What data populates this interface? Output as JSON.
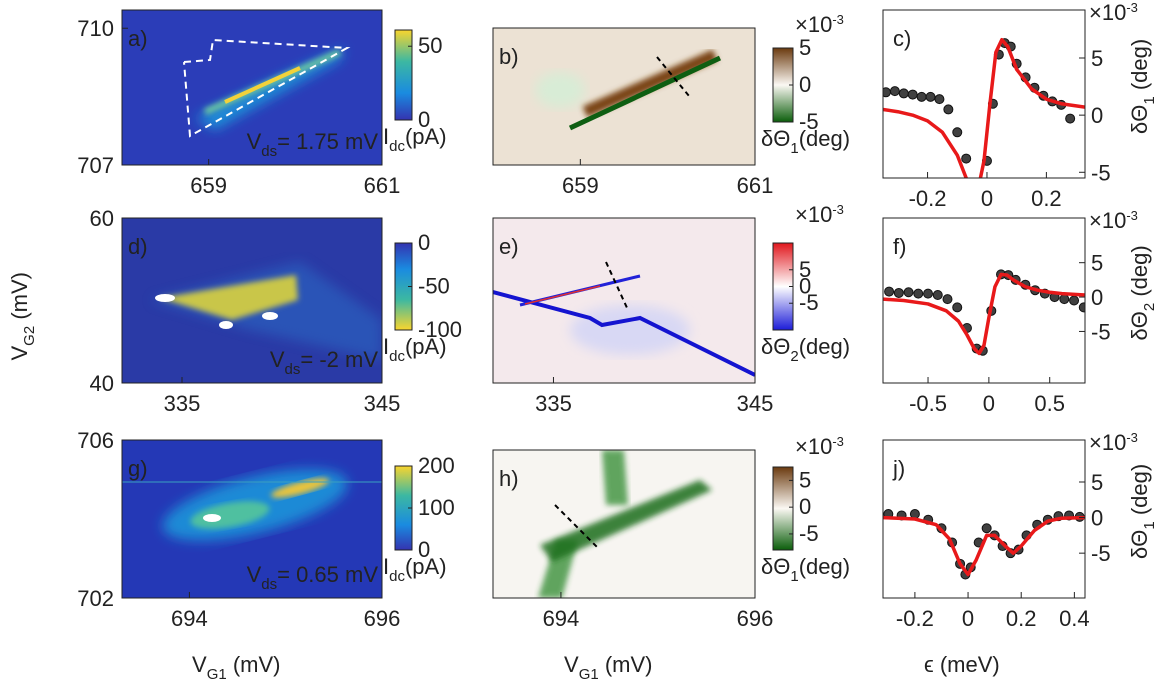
{
  "chart_data": [
    {
      "type": "heatmap",
      "panel_label": "a)",
      "colormap": "parula",
      "xlim": [
        658,
        661
      ],
      "xticks": [
        659,
        661
      ],
      "ylim": [
        707,
        710.4
      ],
      "yticks": [
        707,
        710
      ],
      "annotation": {
        "text": "V",
        "sub": "ds",
        "after": "= 1.75 mV"
      },
      "colorbar": {
        "lim": [
          0,
          61
        ],
        "ticks": [
          0,
          50
        ],
        "label": {
          "text": "I",
          "sub": "dc",
          "after": "(pA)"
        }
      }
    },
    {
      "type": "heatmap",
      "panel_label": "b)",
      "colormap": "brown_green",
      "xlim": [
        658,
        661
      ],
      "xticks": [
        659,
        661
      ],
      "colorbar": {
        "lim": [
          -5,
          5
        ],
        "ticks": [
          -5,
          0,
          5
        ],
        "multiplier": {
          "text": "×10",
          "sup": "-3"
        },
        "label": {
          "text": "δΘ",
          "sub": "1",
          "after": "(deg)"
        }
      }
    },
    {
      "type": "line",
      "panel_label": "c)",
      "xlim": [
        -0.35,
        0.33
      ],
      "xticks": [
        -0.2,
        0,
        0.2
      ],
      "ylim": [
        -5.5,
        9.2
      ],
      "yticks": [
        -5,
        0,
        5
      ],
      "multiplier": {
        "text": "×10",
        "sup": "-3"
      },
      "ylabel": {
        "text": "δΘ",
        "sub": "1",
        "after": " (deg)"
      },
      "series": [
        {
          "style": "markers",
          "color": "#404040",
          "x": [
            -0.34,
            -0.31,
            -0.28,
            -0.25,
            -0.22,
            -0.19,
            -0.16,
            -0.13,
            -0.1,
            -0.07,
            -0.04,
            -0.02,
            0,
            0.02,
            0.04,
            0.06,
            0.08,
            0.1,
            0.13,
            0.16,
            0.19,
            0.22,
            0.25,
            0.28
          ],
          "values": [
            2,
            2.1,
            1.9,
            1.8,
            1.6,
            1.6,
            1.4,
            0.5,
            -1.5,
            -3.8,
            -6.3,
            -6.5,
            -4,
            1,
            5.3,
            6.3,
            6,
            4.5,
            3.3,
            2.4,
            1.7,
            1.2,
            0.9,
            -0.3
          ]
        },
        {
          "style": "line",
          "color": "#e8191a",
          "x": [
            -0.35,
            -0.3,
            -0.25,
            -0.2,
            -0.15,
            -0.1,
            -0.07,
            -0.05,
            -0.03,
            -0.01,
            0.01,
            0.03,
            0.05,
            0.07,
            0.1,
            0.15,
            0.2,
            0.25,
            0.33
          ],
          "values": [
            0.5,
            0.3,
            0,
            -0.5,
            -1.5,
            -3.5,
            -5.5,
            -6.6,
            -6.5,
            -4,
            1,
            5.5,
            6.6,
            6,
            4,
            2.3,
            1.4,
            1,
            0.7
          ]
        }
      ]
    },
    {
      "type": "heatmap",
      "panel_label": "d)",
      "colormap": "parula_r",
      "xlim": [
        332,
        345
      ],
      "xticks": [
        335,
        345
      ],
      "ylim": [
        40,
        60
      ],
      "yticks": [
        40,
        60
      ],
      "ylabel": {
        "text": "V",
        "sub": "G2",
        "after": " (mV)"
      },
      "annotation": {
        "text": "V",
        "sub": "ds",
        "after": "= -2 mV"
      },
      "colorbar": {
        "lim": [
          -100,
          0
        ],
        "ticks": [
          -100,
          -50,
          0
        ],
        "label": {
          "text": "I",
          "sub": "dc",
          "after": "(pA)"
        }
      }
    },
    {
      "type": "heatmap",
      "panel_label": "e)",
      "colormap": "red_blue",
      "xlim": [
        332,
        345
      ],
      "xticks": [
        335,
        345
      ],
      "colorbar": {
        "lim": [
          -13,
          13
        ],
        "ticks": [
          -5,
          0,
          5
        ],
        "multiplier": {
          "text": "×10",
          "sup": "-3"
        },
        "label": {
          "text": "δΘ",
          "sub": "2",
          "after": "(deg)"
        }
      }
    },
    {
      "type": "line",
      "panel_label": "f)",
      "xlim": [
        -0.87,
        0.79
      ],
      "xticks": [
        -0.5,
        0,
        0.5
      ],
      "ylim": [
        -12.5,
        11.5
      ],
      "yticks": [
        -5,
        0,
        5
      ],
      "multiplier": {
        "text": "×10",
        "sup": "-3"
      },
      "ylabel": {
        "text": "δΘ",
        "sub": "2",
        "after": " (deg)"
      },
      "series": [
        {
          "style": "markers",
          "color": "#404040",
          "x": [
            -0.82,
            -0.74,
            -0.66,
            -0.58,
            -0.5,
            -0.42,
            -0.34,
            -0.26,
            -0.18,
            -0.1,
            -0.05,
            0.02,
            0.1,
            0.16,
            0.22,
            0.3,
            0.38,
            0.46,
            0.54,
            0.62,
            0.7,
            0.78
          ],
          "values": [
            0.8,
            0.6,
            0.7,
            0.5,
            0.5,
            0.3,
            -0.3,
            -1.5,
            -4.5,
            -7.5,
            -7.8,
            -2,
            3.3,
            3.2,
            2.5,
            1.8,
            1,
            0.5,
            0,
            -0.3,
            -0.5,
            -1.5
          ]
        },
        {
          "style": "line",
          "color": "#e8191a",
          "x": [
            -0.87,
            -0.7,
            -0.5,
            -0.35,
            -0.25,
            -0.18,
            -0.12,
            -0.08,
            -0.04,
            0,
            0.05,
            0.1,
            0.15,
            0.2,
            0.3,
            0.4,
            0.5,
            0.6,
            0.79
          ],
          "values": [
            -0.3,
            -0.5,
            -1,
            -2,
            -3.5,
            -5.5,
            -7.5,
            -8.2,
            -7,
            -3,
            1.5,
            3.3,
            3.2,
            2.5,
            1.5,
            1,
            0.7,
            0.5,
            0.3
          ]
        }
      ]
    },
    {
      "type": "heatmap",
      "panel_label": "g)",
      "colormap": "parula",
      "xlim": [
        693.3,
        696
      ],
      "xticks": [
        694,
        696
      ],
      "ylim": [
        702,
        706
      ],
      "yticks": [
        702,
        706
      ],
      "xlabel": {
        "text": "V",
        "sub": "G1",
        "after": " (mV)"
      },
      "annotation": {
        "text": "V",
        "sub": "ds",
        "after": "= 0.65 mV"
      },
      "colorbar": {
        "lim": [
          0,
          200
        ],
        "ticks": [
          0,
          100,
          200
        ],
        "label": {
          "text": "I",
          "sub": "dc",
          "after": "(pA)"
        }
      }
    },
    {
      "type": "heatmap",
      "panel_label": "h)",
      "colormap": "brown_green",
      "xlim": [
        693.3,
        696
      ],
      "xticks": [
        694,
        696
      ],
      "xlabel": {
        "text": "V",
        "sub": "G1",
        "after": " (mV)"
      },
      "colorbar": {
        "lim": [
          -8,
          7.5
        ],
        "ticks": [
          -5,
          0,
          5
        ],
        "multiplier": {
          "text": "×10",
          "sup": "-3"
        },
        "label": {
          "text": "δΘ",
          "sub": "1",
          "after": "(deg)"
        }
      }
    },
    {
      "type": "line",
      "panel_label": "j)",
      "xlim": [
        -0.32,
        0.44
      ],
      "xticks": [
        -0.2,
        0,
        0.2,
        0.4
      ],
      "ylim": [
        -11.3,
        10.9
      ],
      "yticks": [
        -5,
        0,
        5
      ],
      "multiplier": {
        "text": "×10",
        "sup": "-3"
      },
      "ylabel": {
        "text": "δΘ",
        "sub": "1",
        "after": " (deg)"
      },
      "xlabel": {
        "text": "ϵ (meV)"
      },
      "series": [
        {
          "style": "markers",
          "color": "#404040",
          "x": [
            -0.3,
            -0.25,
            -0.2,
            -0.15,
            -0.1,
            -0.06,
            -0.03,
            -0.01,
            0.01,
            0.04,
            0.07,
            0.1,
            0.13,
            0.16,
            0.19,
            0.22,
            0.26,
            0.3,
            0.34,
            0.38,
            0.42
          ],
          "values": [
            0.5,
            0.3,
            0.5,
            -0.3,
            -1.5,
            -3.5,
            -6.5,
            -8,
            -7,
            -3.5,
            -1.5,
            -2.5,
            -4,
            -5,
            -4.5,
            -2.5,
            -1,
            -0.3,
            0.2,
            0.3,
            0.1
          ]
        },
        {
          "style": "line",
          "color": "#e8191a",
          "x": [
            -0.32,
            -0.2,
            -0.12,
            -0.07,
            -0.03,
            0,
            0.03,
            0.07,
            0.1,
            0.14,
            0.17,
            0.2,
            0.25,
            0.3,
            0.35,
            0.44
          ],
          "values": [
            0,
            -0.2,
            -1,
            -3,
            -6.5,
            -8,
            -6,
            -2.5,
            -2.5,
            -4,
            -5,
            -4,
            -1.8,
            -0.5,
            -0.1,
            0
          ]
        }
      ]
    }
  ]
}
